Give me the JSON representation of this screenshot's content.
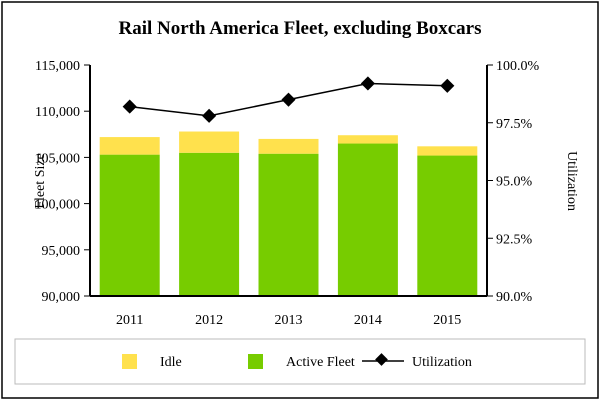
{
  "chart_data": {
    "type": "bar",
    "title": "Rail North America Fleet, excluding Boxcars",
    "categories": [
      "2011",
      "2012",
      "2013",
      "2014",
      "2015"
    ],
    "series": [
      {
        "name": "Active Fleet",
        "kind": "stacked-bar",
        "axis": "left",
        "color": "#77cc00",
        "values": [
          105300,
          105500,
          105400,
          106500,
          105200
        ]
      },
      {
        "name": "Idle",
        "kind": "stacked-bar",
        "axis": "left",
        "color": "#ffe14d",
        "values": [
          1900,
          2300,
          1600,
          900,
          1000
        ]
      },
      {
        "name": "Utilization",
        "kind": "line",
        "axis": "right",
        "color": "#000000",
        "values": [
          98.2,
          97.8,
          98.5,
          99.2,
          99.1
        ]
      }
    ],
    "ylabel": "Fleet Size",
    "ylabel_right": "Utilization",
    "ylim": [
      90000,
      115000
    ],
    "ylim_right": [
      90.0,
      100.0
    ],
    "yticks": [
      "90,000",
      "95,000",
      "100,000",
      "105,000",
      "110,000",
      "115,000"
    ],
    "yticks_right": [
      "90.0%",
      "92.5%",
      "95.0%",
      "97.5%",
      "100.0%"
    ],
    "legend": [
      "Idle",
      "Active Fleet",
      "Utilization"
    ],
    "legend_position": "bottom",
    "grid": false
  }
}
